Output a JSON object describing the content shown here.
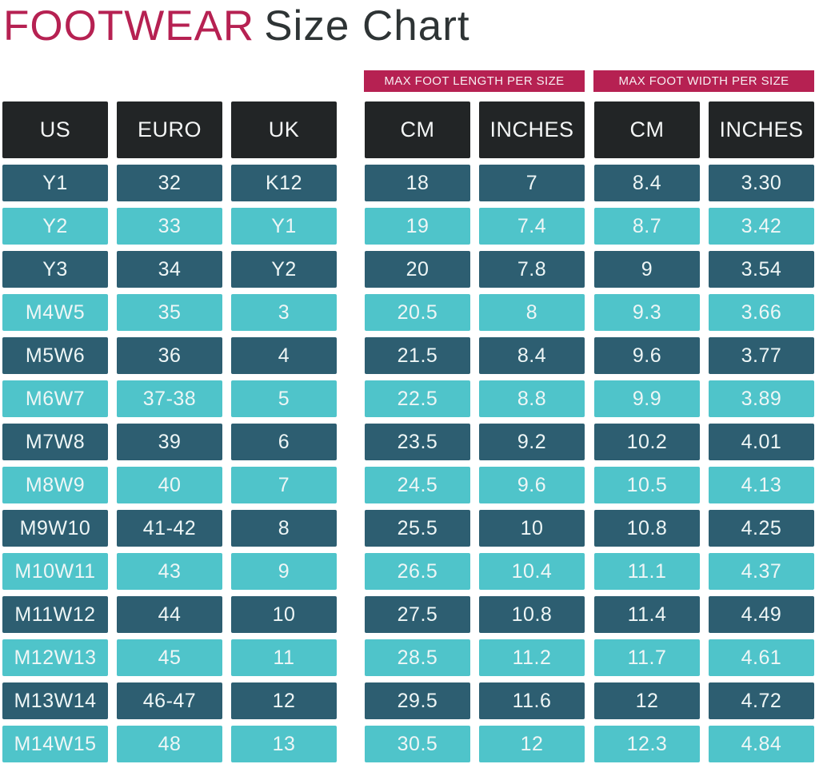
{
  "title": {
    "brand": "FOOTWEAR",
    "rest": "Size Chart"
  },
  "banners": {
    "length": "MAX FOOT LENGTH PER SIZE",
    "width": "MAX FOOT WIDTH PER SIZE"
  },
  "colors": {
    "accent_crimson": "#b62152",
    "title_dark": "#2e3435",
    "header_bg": "#222526",
    "row_dark_teal": "#2d5e71",
    "row_light_teal": "#4fc4ca",
    "cell_text": "#eef6f6",
    "background": "#ffffff"
  },
  "chart_data": {
    "type": "table",
    "title": "FOOTWEAR Size Chart",
    "column_groups": [
      "",
      "MAX FOOT LENGTH PER SIZE",
      "MAX FOOT WIDTH PER SIZE"
    ],
    "columns": [
      "US",
      "EURO",
      "UK",
      "CM",
      "INCHES",
      "CM",
      "INCHES"
    ],
    "rows": [
      [
        "Y1",
        "32",
        "K12",
        "18",
        "7",
        "8.4",
        "3.30"
      ],
      [
        "Y2",
        "33",
        "Y1",
        "19",
        "7.4",
        "8.7",
        "3.42"
      ],
      [
        "Y3",
        "34",
        "Y2",
        "20",
        "7.8",
        "9",
        "3.54"
      ],
      [
        "M4W5",
        "35",
        "3",
        "20.5",
        "8",
        "9.3",
        "3.66"
      ],
      [
        "M5W6",
        "36",
        "4",
        "21.5",
        "8.4",
        "9.6",
        "3.77"
      ],
      [
        "M6W7",
        "37-38",
        "5",
        "22.5",
        "8.8",
        "9.9",
        "3.89"
      ],
      [
        "M7W8",
        "39",
        "6",
        "23.5",
        "9.2",
        "10.2",
        "4.01"
      ],
      [
        "M8W9",
        "40",
        "7",
        "24.5",
        "9.6",
        "10.5",
        "4.13"
      ],
      [
        "M9W10",
        "41-42",
        "8",
        "25.5",
        "10",
        "10.8",
        "4.25"
      ],
      [
        "M10W11",
        "43",
        "9",
        "26.5",
        "10.4",
        "11.1",
        "4.37"
      ],
      [
        "M11W12",
        "44",
        "10",
        "27.5",
        "10.8",
        "11.4",
        "4.49"
      ],
      [
        "M12W13",
        "45",
        "11",
        "28.5",
        "11.2",
        "11.7",
        "4.61"
      ],
      [
        "M13W14",
        "46-47",
        "12",
        "29.5",
        "11.6",
        "12",
        "4.72"
      ],
      [
        "M14W15",
        "48",
        "13",
        "30.5",
        "12",
        "12.3",
        "4.84"
      ]
    ],
    "row_style_alternation": [
      "dark-teal",
      "light-teal"
    ],
    "layout_hint": "first row dark, alternating; 3-column size group, 2-column length group, 2-column width group"
  }
}
